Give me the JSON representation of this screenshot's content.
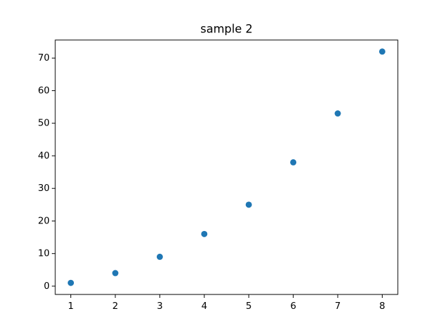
{
  "chart_data": {
    "type": "scatter",
    "title": "sample 2",
    "x": [
      1,
      2,
      3,
      4,
      5,
      6,
      7,
      8
    ],
    "values": [
      1,
      4,
      9,
      16,
      25,
      38,
      53,
      72
    ],
    "color": "#1f77b4",
    "xlim": [
      0.65,
      8.35
    ],
    "xticks": [
      1,
      2,
      3,
      4,
      5,
      6,
      7,
      8
    ],
    "ylim": [
      -2.55,
      75.55
    ],
    "yticks": [
      0,
      10,
      20,
      30,
      40,
      50,
      60,
      70
    ],
    "grid": false
  }
}
